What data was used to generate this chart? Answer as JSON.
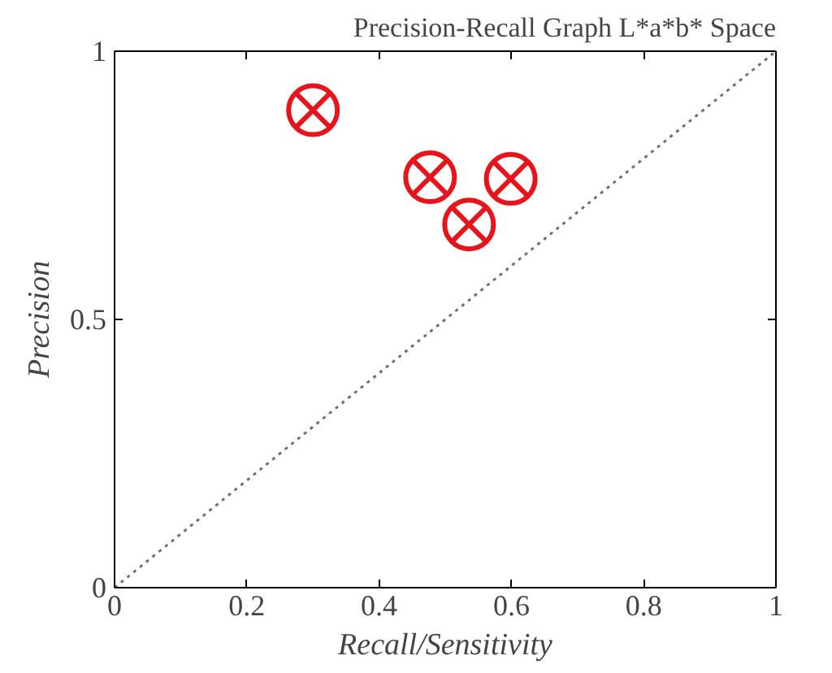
{
  "chart_data": {
    "type": "scatter",
    "title": "Precision-Recall Graph L*a*b* Space",
    "xlabel": "Recall/Sensitivity",
    "ylabel": "Precision",
    "xlim": [
      0,
      1
    ],
    "ylim": [
      0,
      1
    ],
    "xticks": [
      0,
      0.2,
      0.4,
      0.6,
      0.8,
      1
    ],
    "yticks": [
      0,
      0.5,
      1
    ],
    "grid": false,
    "series": [
      {
        "color": "#e8141c",
        "marker": "circle_x",
        "x": [
          0.3,
          0.477,
          0.536,
          0.599
        ],
        "values": [
          0.89,
          0.765,
          0.677,
          0.762
        ]
      },
      {
        "type": "line",
        "color": "#707070",
        "line_style": "dotted",
        "x": [
          0,
          1
        ],
        "values": [
          0,
          1
        ]
      }
    ]
  }
}
